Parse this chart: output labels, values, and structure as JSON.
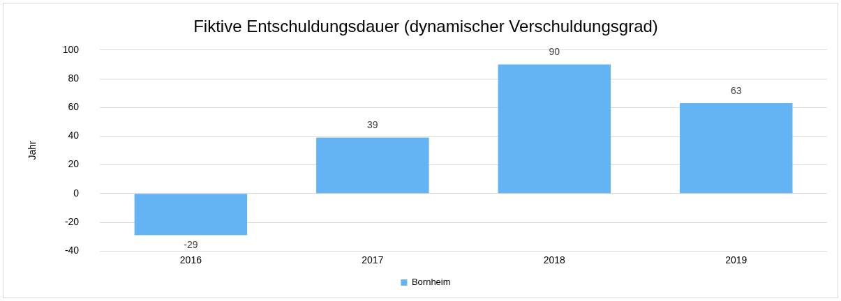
{
  "chart_data": {
    "type": "bar",
    "title": "Fiktive Entschuldungsdauer (dynamischer Verschuldungsgrad)",
    "ylabel": "Jahr",
    "categories": [
      "2016",
      "2017",
      "2018",
      "2019"
    ],
    "series": [
      {
        "name": "Bornheim",
        "color": "#63b3f5",
        "values": [
          -29,
          39,
          90,
          63
        ]
      }
    ],
    "ylim": [
      -40,
      100
    ],
    "yticks": [
      -40,
      -20,
      0,
      20,
      40,
      60,
      80,
      100
    ],
    "grid": "y",
    "legend": "bottom",
    "data_labels": true
  }
}
